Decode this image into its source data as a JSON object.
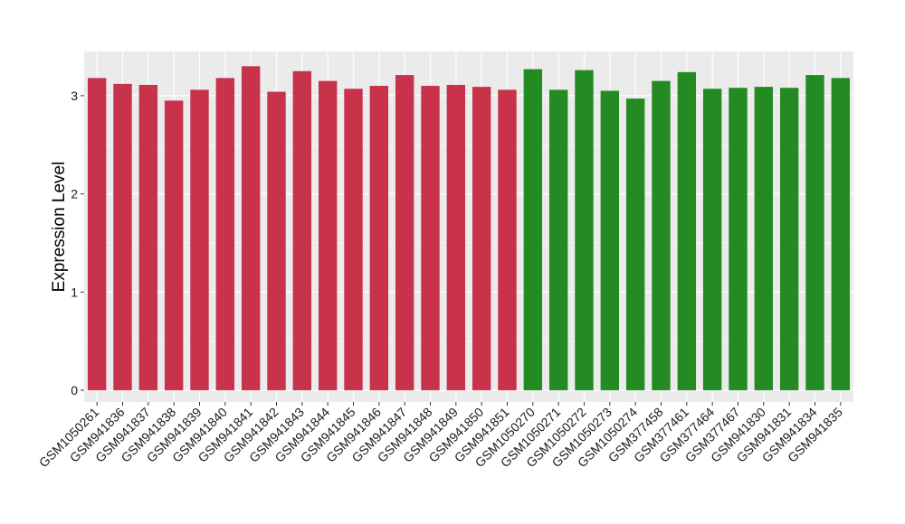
{
  "chart_data": {
    "type": "bar",
    "title": "",
    "xlabel": "",
    "ylabel": "Expression Level",
    "ylim": [
      -0.12,
      3.45
    ],
    "yticks": [
      0,
      1,
      2,
      3
    ],
    "grid": true,
    "legend": "none",
    "panel_background": "#ebebeb",
    "grid_color": "#ffffff",
    "categories": [
      "GSM1050261",
      "GSM941836",
      "GSM941837",
      "GSM941838",
      "GSM941839",
      "GSM941840",
      "GSM941841",
      "GSM941842",
      "GSM941843",
      "GSM941844",
      "GSM941845",
      "GSM941846",
      "GSM941847",
      "GSM941848",
      "GSM941849",
      "GSM941850",
      "GSM941851",
      "GSM1050270",
      "GSM1050271",
      "GSM1050272",
      "GSM1050273",
      "GSM1050274",
      "GSM377458",
      "GSM377461",
      "GSM377464",
      "GSM377467",
      "GSM941830",
      "GSM941831",
      "GSM941834",
      "GSM941835"
    ],
    "values": [
      3.18,
      3.12,
      3.11,
      2.95,
      3.06,
      3.18,
      3.3,
      3.04,
      3.25,
      3.15,
      3.07,
      3.1,
      3.21,
      3.1,
      3.11,
      3.09,
      3.06,
      3.27,
      3.06,
      3.26,
      3.05,
      2.97,
      3.15,
      3.24,
      3.07,
      3.08,
      3.09,
      3.08,
      3.21,
      3.18
    ],
    "groups": [
      "a",
      "a",
      "a",
      "a",
      "a",
      "a",
      "a",
      "a",
      "a",
      "a",
      "a",
      "a",
      "a",
      "a",
      "a",
      "a",
      "a",
      "b",
      "b",
      "b",
      "b",
      "b",
      "b",
      "b",
      "b",
      "b",
      "b",
      "b",
      "b",
      "b"
    ],
    "group_colors": {
      "a": "#c8324a",
      "b": "#238b22"
    }
  }
}
